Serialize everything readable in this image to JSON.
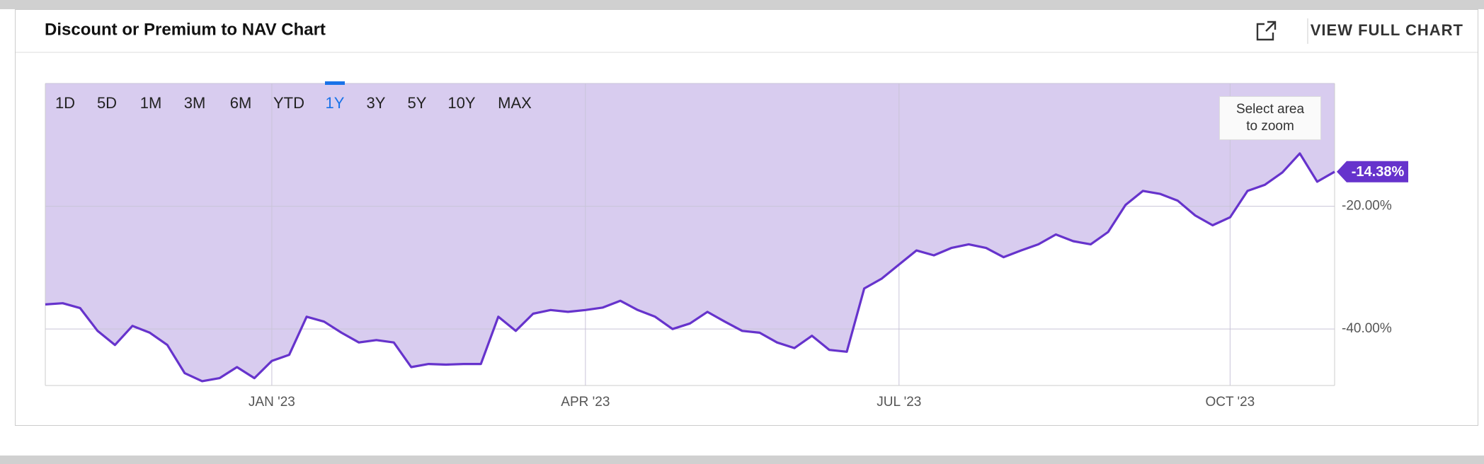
{
  "header": {
    "title": "Discount or Premium to NAV Chart",
    "action": "VIEW FULL CHART"
  },
  "range_buttons": [
    "1D",
    "5D",
    "1M",
    "3M",
    "6M",
    "YTD",
    "1Y",
    "3Y",
    "5Y",
    "10Y",
    "MAX"
  ],
  "selected_range": "1Y",
  "zoom_hint": "Select area to zoom",
  "chart_data": {
    "type": "area",
    "categories": [
      null,
      null,
      null,
      null,
      null,
      null,
      null,
      null,
      null,
      null,
      null,
      null,
      null,
      "JAN '23",
      null,
      null,
      null,
      null,
      null,
      null,
      null,
      null,
      null,
      null,
      null,
      null,
      null,
      null,
      null,
      null,
      null,
      "APR '23",
      null,
      null,
      null,
      null,
      null,
      null,
      null,
      null,
      null,
      null,
      null,
      null,
      null,
      null,
      null,
      null,
      null,
      "JUL '23",
      null,
      null,
      null,
      null,
      null,
      null,
      null,
      null,
      null,
      null,
      null,
      null,
      null,
      null,
      null,
      null,
      null,
      null,
      "OCT '23",
      null,
      null,
      null,
      null,
      null,
      null
    ],
    "values": [
      -36.0,
      -35.8,
      -36.6,
      -40.3,
      -42.6,
      -39.5,
      -40.6,
      -42.6,
      -47.2,
      -48.5,
      -48.0,
      -46.2,
      -48.0,
      -45.2,
      -44.2,
      -38.0,
      -38.8,
      -40.6,
      -42.2,
      -41.8,
      -42.2,
      -46.2,
      -45.7,
      -45.8,
      -45.7,
      -45.7,
      -38.0,
      -40.3,
      -37.5,
      -36.9,
      -37.2,
      -36.9,
      -36.5,
      -35.4,
      -36.9,
      -38.0,
      -40.0,
      -39.1,
      -37.2,
      -38.8,
      -40.3,
      -40.6,
      -42.2,
      -43.1,
      -41.1,
      -43.4,
      -43.7,
      -33.4,
      -31.8,
      -29.5,
      -27.2,
      -28.0,
      -26.8,
      -26.2,
      -26.8,
      -28.3,
      -27.2,
      -26.2,
      -24.6,
      -25.7,
      -26.2,
      -24.2,
      -19.8,
      -17.5,
      -18.0,
      -19.1,
      -21.5,
      -23.1,
      -21.8,
      -17.5,
      -16.5,
      -14.5,
      -11.4,
      -16.0,
      -14.38
    ],
    "value_labels": [
      null,
      null,
      null,
      null,
      null,
      null,
      null,
      null,
      null,
      null,
      null,
      null,
      null,
      null,
      null,
      null,
      null,
      null,
      null,
      null,
      null,
      null,
      null,
      null,
      null,
      null,
      null,
      null,
      null,
      null,
      null,
      null,
      null,
      null,
      null,
      null,
      null,
      null,
      null,
      null,
      null,
      null,
      null,
      null,
      null,
      null,
      null,
      null,
      null,
      null,
      null,
      null,
      null,
      null,
      null,
      null,
      null,
      null,
      null,
      null,
      null,
      null,
      null,
      null,
      null,
      null,
      null,
      null,
      null,
      null,
      null,
      null,
      null,
      null,
      "-14.38%"
    ],
    "color": "#6633cc",
    "fill_color": "#d8ccef",
    "ylim": [
      -49.2,
      0
    ],
    "yticks": [
      {
        "value": -20,
        "label": "-20.00%"
      },
      {
        "value": -40,
        "label": "-40.00%"
      }
    ],
    "grid": true
  }
}
